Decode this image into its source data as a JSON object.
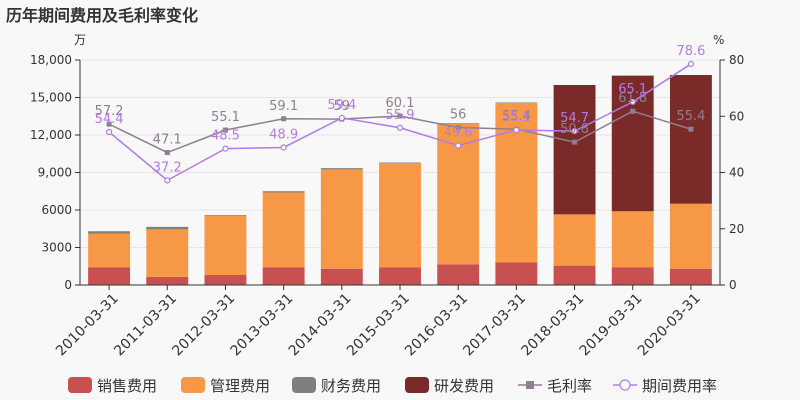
{
  "chart_data": {
    "type": "bar",
    "title": "历年期间费用及毛利率变化",
    "left_unit": "万",
    "right_unit": "%",
    "categories": [
      "2010-03-31",
      "2011-03-31",
      "2012-03-31",
      "2013-03-31",
      "2014-03-31",
      "2015-03-31",
      "2016-03-31",
      "2017-03-31",
      "2018-03-31",
      "2019-03-31",
      "2020-03-31"
    ],
    "y_left": {
      "min": 0,
      "max": 18000,
      "ticks": [
        0,
        3000,
        6000,
        9000,
        12000,
        15000,
        18000
      ],
      "tick_labels": [
        "0",
        "3000",
        "6000",
        "9,000",
        "12,000",
        "15,000",
        "18,000"
      ]
    },
    "y_right": {
      "min": 0,
      "max": 80,
      "ticks": [
        0,
        20,
        40,
        60,
        80
      ],
      "tick_labels": [
        "0",
        "20",
        "40",
        "60",
        "80"
      ]
    },
    "stacked_series": [
      {
        "name": "销售费用",
        "color": "#c85050",
        "values": [
          1400,
          650,
          800,
          1400,
          1300,
          1400,
          1650,
          1800,
          1550,
          1400,
          1300
        ]
      },
      {
        "name": "管理费用",
        "color": "#f79846",
        "values": [
          2700,
          3800,
          4750,
          6000,
          7950,
          8350,
          11250,
          12750,
          4100,
          4500,
          5200
        ]
      },
      {
        "name": "财务费用",
        "color": "#7f7f7f",
        "values": [
          200,
          200,
          50,
          100,
          100,
          50,
          50,
          50,
          0,
          0,
          0
        ]
      },
      {
        "name": "研发费用",
        "color": "#7b2a2a",
        "values": [
          0,
          0,
          0,
          0,
          0,
          0,
          0,
          0,
          10350,
          10850,
          10300
        ]
      }
    ],
    "line_series": [
      {
        "name": "毛利率",
        "color": "#8f7f91",
        "values": [
          57.2,
          47.1,
          55.1,
          59.1,
          59,
          60.1,
          56,
          55.4,
          50.8,
          61.8,
          55.4
        ],
        "labels": [
          "57.2",
          "47.1",
          "55.1",
          "59.1",
          "59",
          "60.1",
          "56",
          "55.4",
          "50.8",
          "61.8",
          "55.4"
        ]
      },
      {
        "name": "期间费用率",
        "color": "#b27be8",
        "values": [
          54.4,
          37.2,
          48.5,
          48.9,
          59.4,
          55.9,
          49.6,
          55.1,
          54.7,
          65.1,
          78.6
        ],
        "labels": [
          "54.4",
          "37.2",
          "48.5",
          "48.9",
          "59.4",
          "55.9",
          "49.6",
          "55.1",
          "54.7",
          "65.1",
          "78.6"
        ]
      }
    ]
  }
}
